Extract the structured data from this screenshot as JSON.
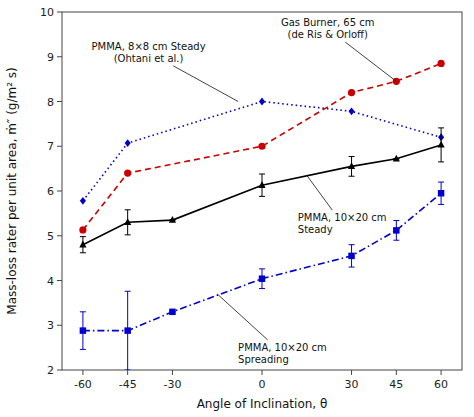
{
  "chart_data": {
    "type": "line",
    "xlabel": "Angle of Inclination, θ",
    "ylabel": "Mass-loss rater per unit area, ṁ″  (g/m² s)",
    "xlim": [
      -67,
      67
    ],
    "ylim": [
      2,
      10
    ],
    "xticks": [
      -60,
      -45,
      -30,
      0,
      30,
      45,
      60
    ],
    "yticks": [
      2,
      3,
      4,
      5,
      6,
      7,
      8,
      9,
      10
    ],
    "series": [
      {
        "color": "#0000cc",
        "marker": "diamond",
        "line_style": "dotted",
        "x": [
          -60,
          -45,
          0,
          30,
          60
        ],
        "values": [
          5.78,
          7.07,
          8.0,
          7.78,
          7.2
        ]
      },
      {
        "color": "#cc0000",
        "marker": "circle",
        "line_style": "dashed",
        "x": [
          -60,
          -45,
          0,
          30,
          45,
          60
        ],
        "values": [
          5.13,
          6.4,
          7.0,
          8.2,
          8.45,
          8.85
        ]
      },
      {
        "color": "#000000",
        "marker": "triangle",
        "line_style": "solid",
        "x": [
          -60,
          -45,
          -30,
          0,
          30,
          45,
          60
        ],
        "values": [
          4.8,
          5.3,
          5.35,
          6.13,
          6.55,
          6.72,
          7.03
        ],
        "errors": [
          0.18,
          0.28,
          0.0,
          0.25,
          0.22,
          0.0,
          0.38
        ]
      },
      {
        "color": "#0000cc",
        "marker": "square",
        "line_style": "dashdot",
        "x": [
          -60,
          -45,
          -30,
          0,
          30,
          45,
          60
        ],
        "values": [
          2.88,
          2.88,
          3.3,
          4.04,
          4.55,
          5.12,
          5.95
        ],
        "errors": [
          0.42,
          0.88,
          0.0,
          0.22,
          0.25,
          0.22,
          0.25
        ]
      }
    ],
    "annotations": [
      {
        "text": "PMMA, 8×8 cm Steady\n(Ohtani et al.)",
        "x": -8,
        "y": 8.0,
        "text_x": -38,
        "text_y": 8.82,
        "align": "center-bottom"
      },
      {
        "text": "Gas Burner, 65 cm\n(de Ris & Orloff)",
        "x": 45,
        "y": 8.45,
        "text_x": 22,
        "text_y": 9.35,
        "align": "center-bottom"
      },
      {
        "text": "PMMA, 10×20 cm\nSteady",
        "x": 15,
        "y": 6.35,
        "text_x": 12,
        "text_y": 5.55,
        "align": "left-top"
      },
      {
        "text": "PMMA, 10×20 cm\nSpreading",
        "x": -15,
        "y": 3.7,
        "text_x": -8,
        "text_y": 2.65,
        "align": "left-top"
      }
    ]
  }
}
